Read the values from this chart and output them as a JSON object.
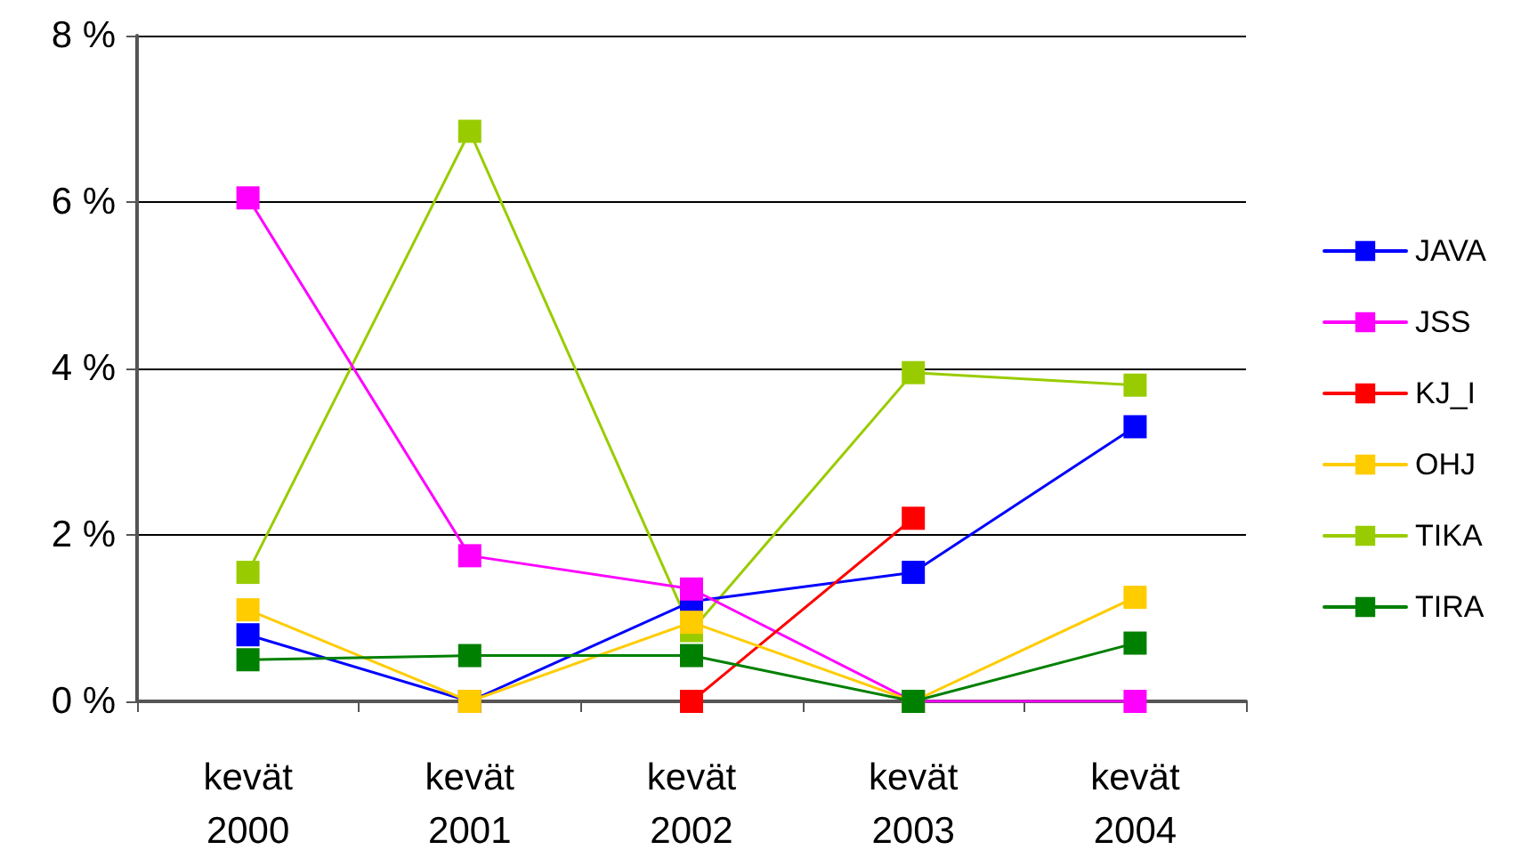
{
  "chart_data": {
    "type": "line",
    "categories": [
      "kevät\n2000",
      "kevät\n2001",
      "kevät\n2002",
      "kevät\n2003",
      "kevät\n2004"
    ],
    "series": [
      {
        "name": "JAVA",
        "color": "#0000ff",
        "values": [
          0.8,
          0,
          1.2,
          1.55,
          3.3
        ]
      },
      {
        "name": "JSS",
        "color": "#ff00ff",
        "values": [
          6.05,
          1.75,
          1.35,
          0,
          0
        ]
      },
      {
        "name": "KJ_I",
        "color": "#ff0000",
        "values": [
          null,
          null,
          0,
          2.2,
          null
        ]
      },
      {
        "name": "OHJ",
        "color": "#ffcc00",
        "values": [
          1.1,
          0,
          0.95,
          0,
          1.25
        ]
      },
      {
        "name": "TIKA",
        "color": "#99cc00",
        "values": [
          1.55,
          6.85,
          0.85,
          3.95,
          3.8
        ]
      },
      {
        "name": "TIRA",
        "color": "#008000",
        "values": [
          0.5,
          0.55,
          0.55,
          0,
          0.7
        ]
      }
    ],
    "ylim": [
      0,
      8
    ],
    "yticks": [
      {
        "value": 0,
        "label": "0 %"
      },
      {
        "value": 2,
        "label": "2 %"
      },
      {
        "value": 4,
        "label": "4 %"
      },
      {
        "value": 6,
        "label": "6 %"
      },
      {
        "value": 8,
        "label": "8 %"
      }
    ],
    "grid": "y",
    "legend": "right",
    "marker": "square",
    "line_style": "solid"
  }
}
